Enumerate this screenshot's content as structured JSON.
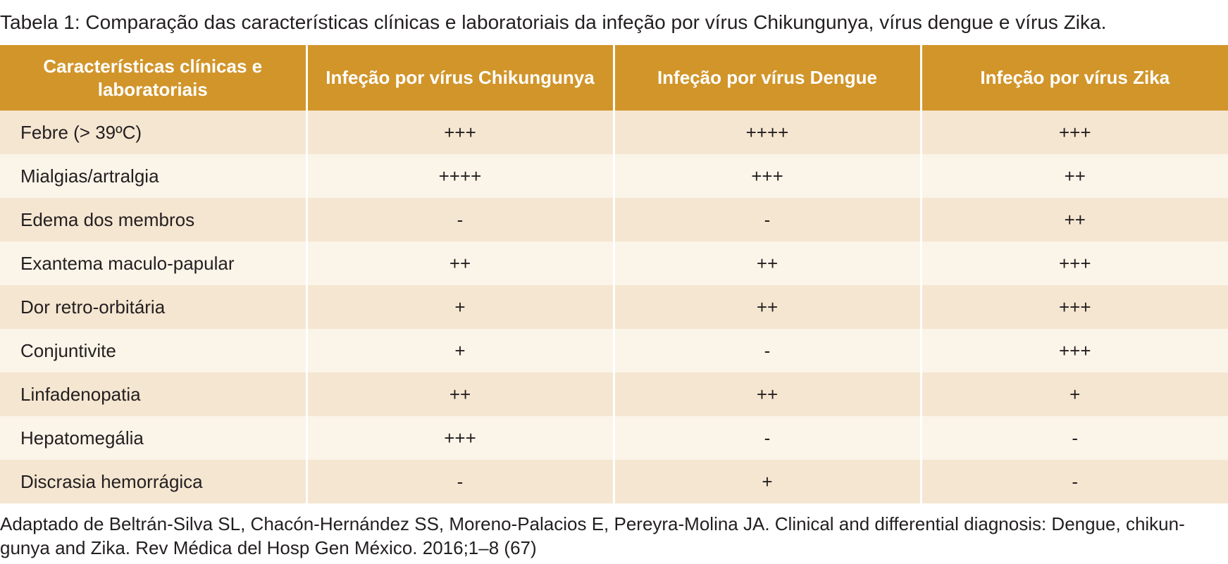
{
  "caption": {
    "label": "Tabela 1",
    "text": ": Comparação das características clínicas e laboratoriais da infeção por vírus Chikungunya, vírus dengue e vírus Zika."
  },
  "table": {
    "headers": [
      "Características clínicas e laboratoriais",
      "Infeção por vírus Chikungunya",
      "Infeção por vírus Dengue",
      "Infeção por vírus Zika"
    ],
    "rows": [
      [
        "Febre (> 39ºC)",
        "+++",
        "++++",
        "+++"
      ],
      [
        "Mialgias/artralgia",
        "++++",
        "+++",
        "++"
      ],
      [
        "Edema dos membros",
        "-",
        "-",
        "++"
      ],
      [
        "Exantema maculo-papular",
        "++",
        "++",
        "+++"
      ],
      [
        "Dor retro-orbitária",
        "+",
        "++",
        "+++"
      ],
      [
        "Conjuntivite",
        "+",
        "-",
        "+++"
      ],
      [
        "Linfadenopatia",
        "++",
        "++",
        "+"
      ],
      [
        "Hepatomegália",
        "+++",
        "-",
        "-"
      ],
      [
        "Discrasia hemorrágica",
        "-",
        "+",
        "-"
      ]
    ]
  },
  "source": {
    "line1": "Adaptado de Beltrán-Silva SL, Chacón-Hernández SS, Moreno-Palacios E, Pereyra-Molina JA. Clinical and differential diagnosis: Dengue, chikun-",
    "line2": "gunya and Zika. Rev Médica del Hosp Gen México. 2016;1–8 (67)"
  },
  "colors": {
    "header_bg": "#d1952a",
    "row_odd": "#f5e6d1",
    "row_even": "#fbf4e9",
    "text": "#231f20"
  }
}
